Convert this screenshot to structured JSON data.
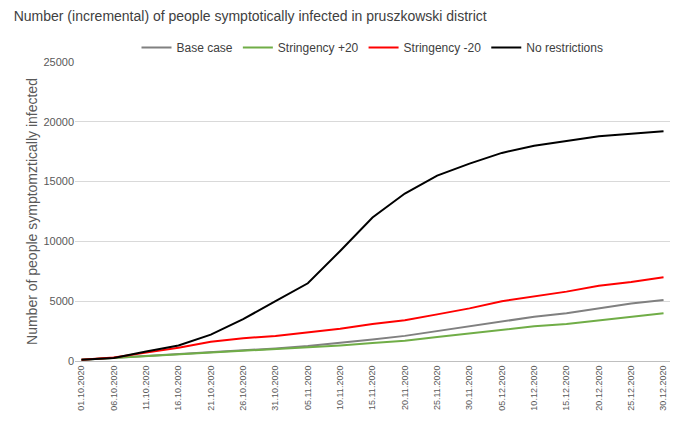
{
  "chart_data": {
    "type": "line",
    "title": "Number (incremental) of people symptotically infected in pruszkowski district",
    "y_label": "Number of people symptomztically infected",
    "categories": [
      "01.10.2020",
      "06.10.2020",
      "11.10.2020",
      "16.10.2020",
      "21.10.2020",
      "26.10.2020",
      "31.10.2020",
      "05.11.2020",
      "10.11.2020",
      "15.11.2020",
      "20.11.2020",
      "25.11.2020",
      "30.11.2020",
      "05.12.2020",
      "10.12.2020",
      "15.12.2020",
      "20.12.2020",
      "25.12.2020",
      "30.12.2020"
    ],
    "series": [
      {
        "name": "Base case",
        "color": "#808080",
        "values": [
          100,
          250,
          450,
          600,
          750,
          900,
          1050,
          1250,
          1500,
          1800,
          2100,
          2500,
          2900,
          3300,
          3700,
          4000,
          4400,
          4800,
          5100
        ]
      },
      {
        "name": "Stringency +20",
        "color": "#70ad47",
        "values": [
          100,
          250,
          400,
          550,
          700,
          850,
          950,
          1100,
          1300,
          1500,
          1700,
          2000,
          2300,
          2600,
          2900,
          3100,
          3400,
          3700,
          4000
        ]
      },
      {
        "name": "Stringency -20",
        "color": "#ff0000",
        "values": [
          100,
          300,
          700,
          1100,
          1600,
          1900,
          2100,
          2400,
          2700,
          3100,
          3400,
          3900,
          4400,
          5000,
          5400,
          5800,
          6300,
          6600,
          7000
        ]
      },
      {
        "name": "No restrictions",
        "color": "#000000",
        "values": [
          100,
          250,
          800,
          1300,
          2200,
          3500,
          5000,
          6500,
          9200,
          12000,
          14000,
          15500,
          16500,
          17400,
          18000,
          18400,
          18800,
          19000,
          19200
        ]
      }
    ],
    "ylim": [
      0,
      25000
    ],
    "yticks": [
      0,
      5000,
      10000,
      15000,
      20000,
      25000
    ],
    "grid": true,
    "legend": "top"
  }
}
